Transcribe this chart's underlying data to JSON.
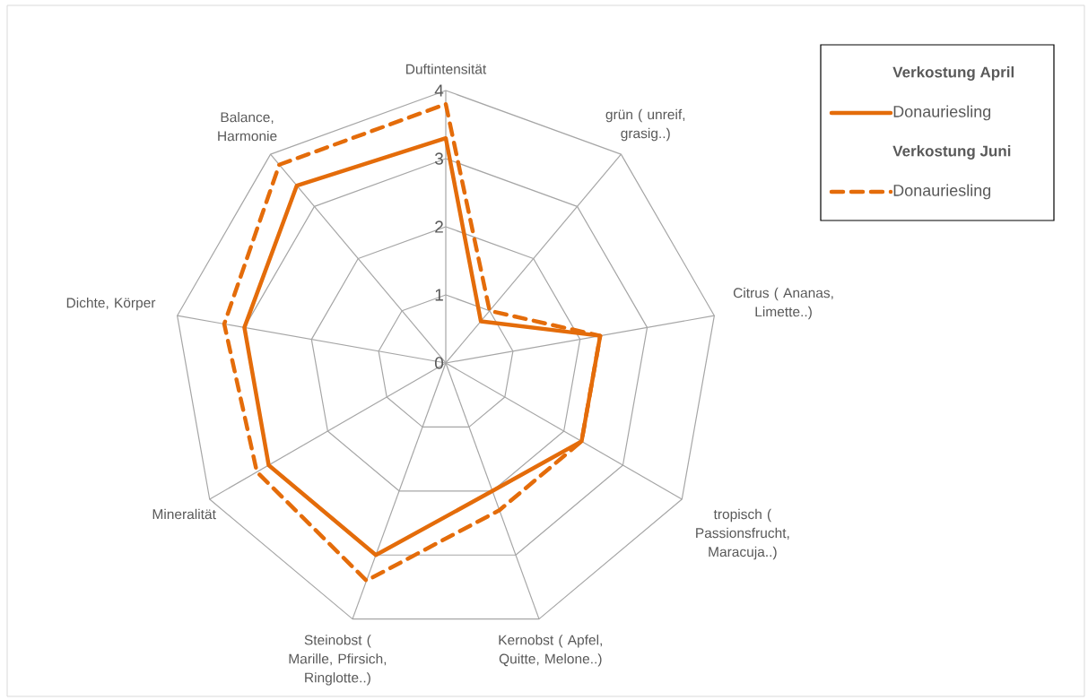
{
  "chart_data": {
    "type": "radar",
    "categories": [
      "Duftintensität",
      "grün ( unreif, grasig..)",
      "Citrus ( Ananas, Limette..)",
      "tropisch ( Passionsfrucht, Maracuja..)",
      "Kernobst ( Apfel, Quitte, Melone..)",
      "Steinobst ( Marille, Pfirsich, Ringlotte..)",
      "Mineralität",
      "Dichte, Körper",
      "Balance, Harmonie"
    ],
    "series": [
      {
        "name": "Donauriesling",
        "color": "#e46c0a",
        "line_style": "solid",
        "values": [
          3.3,
          0.8,
          2.3,
          2.3,
          2.0,
          3.0,
          3.0,
          3.0,
          3.4
        ]
      },
      {
        "name": "Donauriesling",
        "color": "#e46c0a",
        "line_style": "dashed",
        "values": [
          3.8,
          1.0,
          2.3,
          2.3,
          2.3,
          3.4,
          3.2,
          3.3,
          3.8
        ]
      }
    ],
    "annotations": [
      "**Verkostung April**",
      "**Verkostung Juni**"
    ],
    "ylim": [
      0,
      4
    ],
    "yticks": [
      0,
      1,
      2,
      3,
      4
    ],
    "grid": true,
    "legend": "top right"
  }
}
